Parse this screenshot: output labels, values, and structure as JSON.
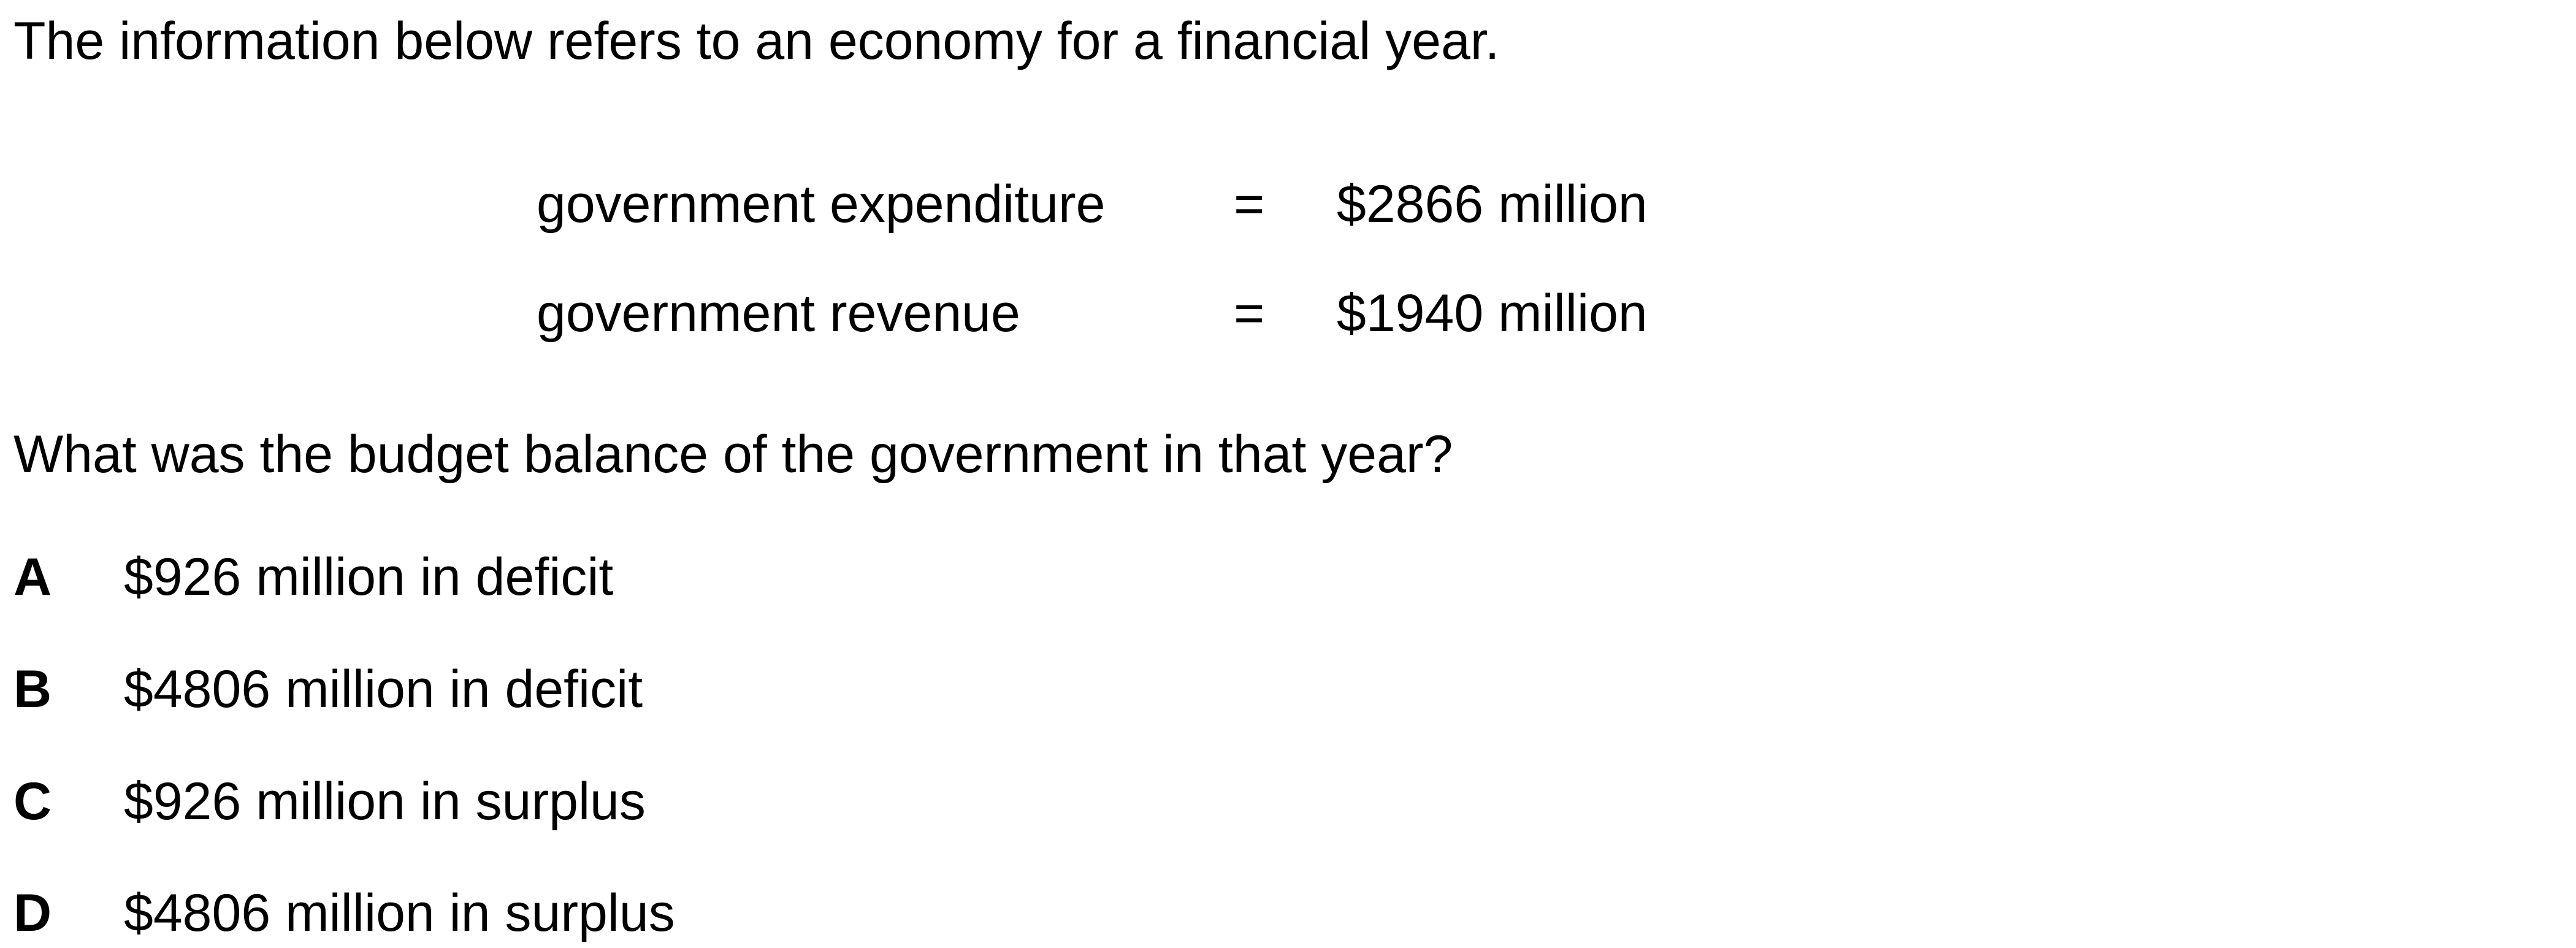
{
  "intro": "The information below refers to an economy for a financial year.",
  "data_rows": [
    {
      "label": "government expenditure",
      "equals": "=",
      "value": "$2866 million"
    },
    {
      "label": "government revenue",
      "equals": "=",
      "value": "$1940 million"
    }
  ],
  "question": "What was the budget balance of the government in that year?",
  "options": [
    {
      "letter": "A",
      "text": "$926 million in deficit"
    },
    {
      "letter": "B",
      "text": "$4806 million in deficit"
    },
    {
      "letter": "C",
      "text": "$926 million in surplus"
    },
    {
      "letter": "D",
      "text": "$4806 million in surplus"
    }
  ]
}
